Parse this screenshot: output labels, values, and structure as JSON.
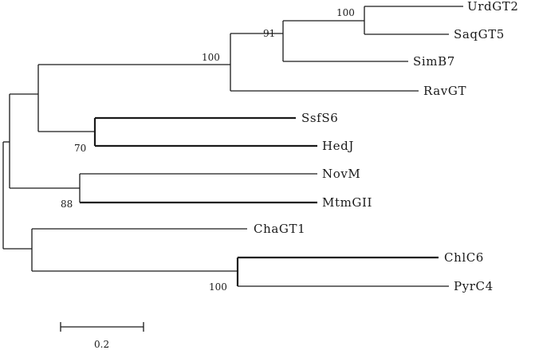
{
  "taxa": {
    "urdgt2": "UrdGT2",
    "saqgt5": "SaqGT5",
    "simb7": "SimB7",
    "ravgt": "RavGT",
    "ssfs6": "SsfS6",
    "hedj": "HedJ",
    "novm": "NovM",
    "mtmgii": "MtmGII",
    "chagt1": "ChaGT1",
    "chlc6": "ChlC6",
    "pyrc4": "PyrC4"
  },
  "bootstrap": {
    "urd_saq": "100",
    "urd_saq_sim": "91",
    "rav_clade": "100",
    "ssf_hed": "70",
    "nov_mtm": "88",
    "chl_pyr": "100"
  },
  "scale_bar": {
    "label": "0.2"
  }
}
